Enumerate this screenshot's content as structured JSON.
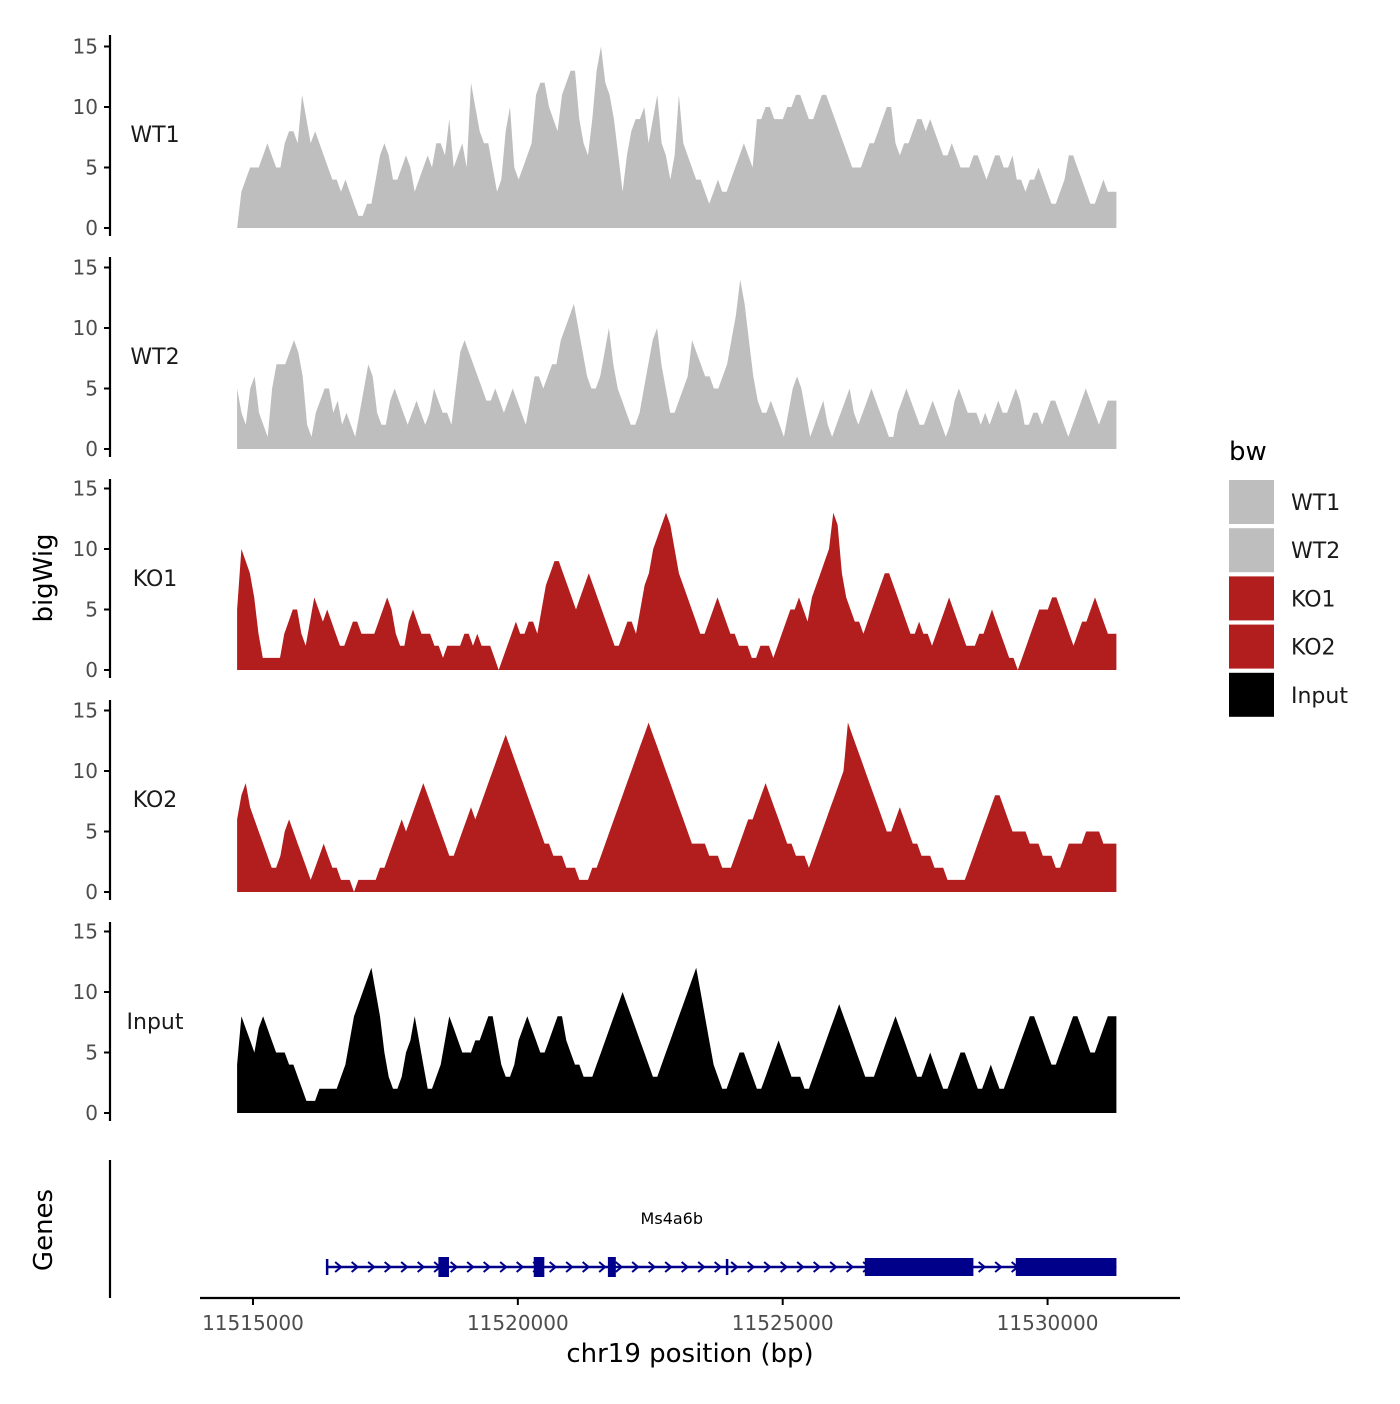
{
  "chart_data": {
    "type": "area",
    "ylabel": "bigWig",
    "xlabel": "chr19 position (bp)",
    "gene_track_label": "Genes",
    "ylim": [
      0,
      15
    ],
    "y_ticks": [
      "0",
      "5",
      "10",
      "15"
    ],
    "xlim": [
      11514000,
      11532500
    ],
    "x_ticks": [
      {
        "value": 11515000,
        "label": "11515000"
      },
      {
        "value": 11520000,
        "label": "11520000"
      },
      {
        "value": 11525000,
        "label": "11525000"
      },
      {
        "value": 11530000,
        "label": "11530000"
      }
    ],
    "data_start": 11514700,
    "data_end": 11531300,
    "series": [
      {
        "name": "WT1",
        "color": "#bebebe",
        "values": [
          0,
          3,
          4,
          5,
          5,
          5,
          6,
          7,
          6,
          5,
          5,
          7,
          8,
          8,
          7,
          11,
          9,
          7,
          8,
          7,
          6,
          5,
          4,
          4,
          3,
          4,
          3,
          2,
          1,
          1,
          2,
          2,
          4,
          6,
          7,
          6,
          4,
          4,
          5,
          6,
          5,
          3,
          4,
          5,
          6,
          5,
          7,
          7,
          6,
          9,
          5,
          6,
          7,
          5,
          12,
          10,
          8,
          7,
          7,
          5,
          3,
          4,
          8,
          10,
          5,
          4,
          5,
          6,
          7,
          11,
          12,
          12,
          10,
          9,
          8,
          11,
          12,
          13,
          13,
          9,
          7,
          6,
          9,
          13,
          15,
          12,
          11,
          9,
          6,
          3,
          6,
          8,
          9,
          9,
          10,
          7,
          9,
          11,
          7,
          6,
          4,
          6,
          11,
          7,
          6,
          5,
          4,
          4,
          3,
          2,
          3,
          4,
          3,
          3,
          4,
          5,
          6,
          7,
          6,
          5,
          9,
          9,
          10,
          10,
          9,
          9,
          9,
          10,
          10,
          11,
          11,
          10,
          9,
          9,
          10,
          11,
          11,
          10,
          9,
          8,
          7,
          6,
          5,
          5,
          5,
          6,
          7,
          7,
          8,
          9,
          10,
          10,
          7,
          6,
          7,
          7,
          8,
          9,
          9,
          8,
          9,
          8,
          7,
          6,
          6,
          7,
          6,
          5,
          5,
          5,
          6,
          6,
          5,
          4,
          5,
          6,
          6,
          5,
          5,
          6,
          4,
          4,
          3,
          4,
          4,
          5,
          4,
          3,
          2,
          2,
          3,
          4,
          6,
          6,
          5,
          4,
          3,
          2,
          2,
          3,
          4,
          3,
          3,
          3
        ],
        "legend_label": "WT1"
      },
      {
        "name": "WT2",
        "color": "#bebebe",
        "values": [
          5,
          3,
          2,
          5,
          6,
          3,
          2,
          1,
          5,
          7,
          7,
          7,
          8,
          9,
          8,
          6,
          2,
          1,
          3,
          4,
          5,
          5,
          3,
          4,
          2,
          3,
          2,
          1,
          3,
          5,
          7,
          6,
          3,
          2,
          2,
          4,
          5,
          4,
          3,
          2,
          3,
          4,
          3,
          2,
          3,
          5,
          4,
          3,
          3,
          2,
          5,
          8,
          9,
          8,
          7,
          6,
          5,
          4,
          4,
          5,
          4,
          3,
          4,
          5,
          4,
          3,
          2,
          4,
          6,
          6,
          5,
          6,
          7,
          7,
          9,
          10,
          11,
          12,
          10,
          8,
          6,
          5,
          5,
          6,
          8,
          10,
          7,
          5,
          4,
          3,
          2,
          2,
          3,
          5,
          7,
          9,
          10,
          7,
          5,
          3,
          3,
          4,
          5,
          6,
          9,
          8,
          7,
          6,
          6,
          5,
          5,
          6,
          7,
          9,
          11,
          14,
          12,
          9,
          6,
          4,
          3,
          3,
          4,
          3,
          2,
          1,
          3,
          5,
          6,
          5,
          3,
          1,
          2,
          3,
          4,
          2,
          1,
          2,
          3,
          4,
          5,
          3,
          2,
          3,
          4,
          5,
          4,
          3,
          2,
          1,
          1,
          3,
          4,
          5,
          4,
          3,
          2,
          2,
          3,
          4,
          3,
          2,
          1,
          2,
          4,
          5,
          4,
          3,
          3,
          3,
          2,
          3,
          2,
          3,
          4,
          3,
          3,
          4,
          5,
          4,
          2,
          2,
          3,
          3,
          2,
          3,
          4,
          4,
          3,
          2,
          1,
          2,
          3,
          4,
          5,
          4,
          3,
          2,
          3,
          4,
          4,
          4
        ],
        "legend_label": "WT2"
      },
      {
        "name": "KO1",
        "color": "#b21d1e",
        "values": [
          5,
          10,
          9,
          8,
          6,
          3,
          1,
          1,
          1,
          1,
          1,
          3,
          4,
          5,
          5,
          3,
          2,
          4,
          6,
          5,
          4,
          5,
          4,
          3,
          2,
          2,
          3,
          4,
          4,
          3,
          3,
          3,
          3,
          4,
          5,
          6,
          5,
          3,
          2,
          2,
          4,
          5,
          4,
          3,
          3,
          3,
          2,
          2,
          1,
          2,
          2,
          2,
          2,
          3,
          3,
          2,
          3,
          2,
          2,
          2,
          1,
          0,
          1,
          2,
          3,
          4,
          3,
          3,
          4,
          4,
          3,
          5,
          7,
          8,
          9,
          9,
          8,
          7,
          6,
          5,
          6,
          7,
          8,
          7,
          6,
          5,
          4,
          3,
          2,
          2,
          3,
          4,
          4,
          3,
          5,
          7,
          8,
          10,
          11,
          12,
          13,
          12,
          10,
          8,
          7,
          6,
          5,
          4,
          3,
          3,
          4,
          5,
          6,
          5,
          4,
          3,
          3,
          2,
          2,
          2,
          1,
          1,
          2,
          2,
          2,
          1,
          2,
          3,
          4,
          5,
          5,
          6,
          5,
          4,
          6,
          7,
          8,
          9,
          10,
          13,
          12,
          8,
          6,
          5,
          4,
          4,
          3,
          4,
          5,
          6,
          7,
          8,
          8,
          7,
          6,
          5,
          4,
          3,
          3,
          4,
          3,
          3,
          2,
          3,
          4,
          5,
          6,
          5,
          4,
          3,
          2,
          2,
          2,
          3,
          3,
          4,
          5,
          4,
          3,
          2,
          1,
          1,
          0,
          1,
          2,
          3,
          4,
          5,
          5,
          5,
          6,
          6,
          5,
          4,
          3,
          2,
          3,
          4,
          4,
          5,
          6,
          5,
          4,
          3,
          3,
          3
        ],
        "legend_label": "KO1"
      },
      {
        "name": "KO2",
        "color": "#b21d1e",
        "values": [
          6,
          8,
          9,
          7,
          6,
          5,
          4,
          3,
          2,
          2,
          3,
          5,
          6,
          5,
          4,
          3,
          2,
          1,
          2,
          3,
          4,
          3,
          2,
          2,
          1,
          1,
          1,
          0,
          1,
          1,
          1,
          1,
          1,
          2,
          2,
          3,
          4,
          5,
          6,
          5,
          6,
          7,
          8,
          9,
          8,
          7,
          6,
          5,
          4,
          3,
          3,
          4,
          5,
          6,
          7,
          6,
          7,
          8,
          9,
          10,
          11,
          12,
          13,
          12,
          11,
          10,
          9,
          8,
          7,
          6,
          5,
          4,
          4,
          3,
          3,
          3,
          2,
          2,
          2,
          1,
          1,
          1,
          2,
          2,
          3,
          4,
          5,
          6,
          7,
          8,
          9,
          10,
          11,
          12,
          13,
          14,
          13,
          12,
          11,
          10,
          9,
          8,
          7,
          6,
          5,
          4,
          4,
          4,
          4,
          3,
          3,
          3,
          2,
          2,
          2,
          3,
          4,
          5,
          6,
          6,
          7,
          8,
          9,
          8,
          7,
          6,
          5,
          4,
          4,
          3,
          3,
          3,
          2,
          3,
          4,
          5,
          6,
          7,
          8,
          9,
          10,
          14,
          13,
          12,
          11,
          10,
          9,
          8,
          7,
          6,
          5,
          5,
          6,
          7,
          6,
          5,
          4,
          4,
          3,
          3,
          3,
          2,
          2,
          2,
          1,
          1,
          1,
          1,
          1,
          2,
          3,
          4,
          5,
          6,
          7,
          8,
          8,
          7,
          6,
          5,
          5,
          5,
          5,
          4,
          4,
          4,
          3,
          3,
          3,
          2,
          2,
          3,
          4,
          4,
          4,
          4,
          5,
          5,
          5,
          5,
          4,
          4,
          4,
          4
        ],
        "legend_label": "KO2"
      },
      {
        "name": "Input",
        "color": "#000000",
        "values": [
          4,
          8,
          7,
          6,
          5,
          7,
          8,
          7,
          6,
          5,
          5,
          5,
          4,
          4,
          3,
          2,
          1,
          1,
          1,
          2,
          2,
          2,
          2,
          2,
          3,
          4,
          6,
          8,
          9,
          10,
          11,
          12,
          10,
          8,
          5,
          3,
          2,
          2,
          3,
          5,
          6,
          8,
          6,
          4,
          2,
          2,
          3,
          4,
          6,
          8,
          7,
          6,
          5,
          5,
          5,
          6,
          6,
          7,
          8,
          8,
          6,
          4,
          3,
          3,
          4,
          6,
          7,
          8,
          7,
          6,
          5,
          5,
          6,
          7,
          8,
          8,
          6,
          5,
          4,
          4,
          3,
          3,
          3,
          4,
          5,
          6,
          7,
          8,
          9,
          10,
          9,
          8,
          7,
          6,
          5,
          4,
          3,
          3,
          4,
          5,
          6,
          7,
          8,
          9,
          10,
          11,
          12,
          10,
          8,
          6,
          4,
          3,
          2,
          2,
          3,
          4,
          5,
          5,
          4,
          3,
          2,
          2,
          3,
          4,
          5,
          6,
          5,
          4,
          3,
          3,
          3,
          2,
          2,
          3,
          4,
          5,
          6,
          7,
          8,
          9,
          8,
          7,
          6,
          5,
          4,
          3,
          3,
          3,
          4,
          5,
          6,
          7,
          8,
          7,
          6,
          5,
          4,
          3,
          3,
          4,
          5,
          4,
          3,
          2,
          2,
          3,
          4,
          5,
          5,
          4,
          3,
          2,
          2,
          3,
          4,
          3,
          2,
          2,
          3,
          4,
          5,
          6,
          7,
          8,
          8,
          7,
          6,
          5,
          4,
          4,
          5,
          6,
          7,
          8,
          8,
          7,
          6,
          5,
          5,
          6,
          7,
          8,
          8,
          8
        ],
        "legend_label": "Input"
      }
    ],
    "legend": {
      "title": "bw",
      "position": "right"
    },
    "gene": {
      "name": "Ms4a6b",
      "color": "#00008b",
      "strand": "+",
      "start": 11516400,
      "end": 11531300,
      "small_marks": [
        11516400,
        11523950
      ],
      "exons": [
        {
          "start": 11518500,
          "end": 11518700,
          "height": "small"
        },
        {
          "start": 11520300,
          "end": 11520500,
          "height": "small"
        },
        {
          "start": 11521700,
          "end": 11521850,
          "height": "small"
        },
        {
          "start": 11526550,
          "end": 11528600,
          "height": "large"
        },
        {
          "start": 11529400,
          "end": 11531300,
          "height": "large"
        }
      ]
    }
  }
}
